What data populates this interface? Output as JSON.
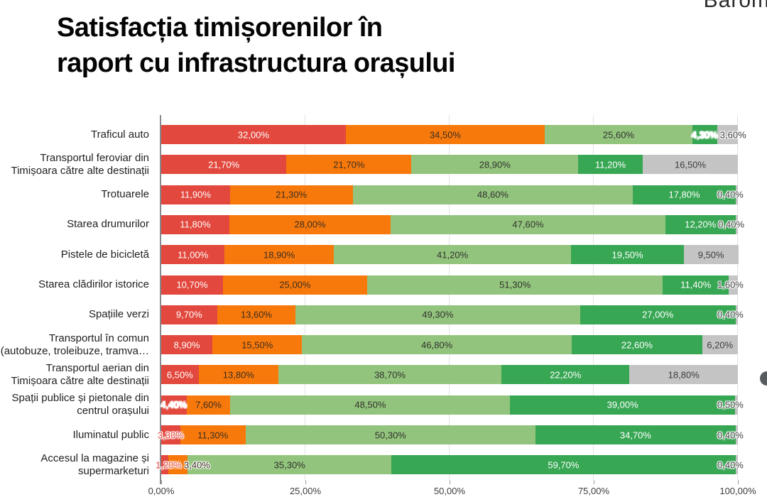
{
  "title": {
    "line1": "Satisfacția timișorenilor în",
    "line2": "raport cu infrastructura orașului"
  },
  "brand": {
    "text": "Barom"
  },
  "chart_data": {
    "type": "bar",
    "variant": "horizontal-stacked",
    "stacking": "percent",
    "title": "Satisfacția timișorenilor în raport cu infrastructura orașului",
    "xlabel": "",
    "ylabel": "",
    "x_range": [
      0,
      100
    ],
    "grid": true,
    "legend": "none",
    "x_axis": {
      "ticks": [
        "0,00%",
        "25,00%",
        "50,00%",
        "75,00%",
        "100,00%"
      ]
    },
    "series": [
      {
        "key": "red",
        "color": "#e2483d",
        "text_color": "#ffffff",
        "overflow_text_color": "#e2483d"
      },
      {
        "key": "orange",
        "color": "#f8790b",
        "text_color": "#3a2e22",
        "overflow_text_color": "#f8790b"
      },
      {
        "key": "light-green",
        "color": "#93c47d",
        "text_color": "#30332c",
        "overflow_text_color": "#93c47d"
      },
      {
        "key": "dark-green",
        "color": "#38a754",
        "text_color": "#ffffff",
        "overflow_text_color": "#ffffff"
      },
      {
        "key": "gray",
        "color": "#c4c4c4",
        "text_color": "#3c3c3c",
        "overflow_text_color": "#404040"
      }
    ],
    "rows": [
      {
        "label": "Traficul auto",
        "label_lines": [
          "Traficul auto"
        ],
        "values": [
          32.0,
          34.5,
          25.6,
          4.3,
          3.6
        ],
        "display": [
          "32,00%",
          "34,50%",
          "25,60%",
          "4,30%",
          "3,60%"
        ]
      },
      {
        "label": "Transportul feroviar din Timișoara către alte destinații",
        "label_lines": [
          "Transportul feroviar din",
          "Timișoara către alte destinații"
        ],
        "values": [
          21.7,
          21.7,
          28.9,
          11.2,
          16.5
        ],
        "display": [
          "21,70%",
          "21,70%",
          "28,90%",
          "11,20%",
          "16,50%"
        ]
      },
      {
        "label": "Trotuarele",
        "label_lines": [
          "Trotuarele"
        ],
        "values": [
          11.9,
          21.3,
          48.6,
          17.8,
          0.4
        ],
        "display": [
          "11,90%",
          "21,30%",
          "48,60%",
          "17,80%",
          "0,40%"
        ]
      },
      {
        "label": "Starea drumurilor",
        "label_lines": [
          "Starea drumurilor"
        ],
        "values": [
          11.8,
          28.0,
          47.6,
          12.2,
          0.4
        ],
        "display": [
          "11,80%",
          "28,00%",
          "47,60%",
          "12,20%",
          "0,40%"
        ]
      },
      {
        "label": "Pistele de bicicletă",
        "label_lines": [
          "Pistele de bicicletă"
        ],
        "values": [
          11.0,
          18.9,
          41.2,
          19.5,
          9.5
        ],
        "display": [
          "11,00%",
          "18,90%",
          "41,20%",
          "19,50%",
          "9,50%"
        ]
      },
      {
        "label": "Starea clădirilor istorice",
        "label_lines": [
          "Starea clădirilor istorice"
        ],
        "values": [
          10.7,
          25.0,
          51.3,
          11.4,
          1.6
        ],
        "display": [
          "10,70%",
          "25,00%",
          "51,30%",
          "11,40%",
          "1,60%"
        ]
      },
      {
        "label": "Spațiile verzi",
        "label_lines": [
          "Spațiile verzi"
        ],
        "values": [
          9.7,
          13.6,
          49.3,
          27.0,
          0.4
        ],
        "display": [
          "9,70%",
          "13,60%",
          "49,30%",
          "27,00%",
          "0,40%"
        ]
      },
      {
        "label": "Transportul în comun (autobuze, troleibuze, tramva…",
        "label_lines": [
          "Transportul în comun",
          "(autobuze, troleibuze, tramva…"
        ],
        "values": [
          8.9,
          15.5,
          46.8,
          22.6,
          6.2
        ],
        "display": [
          "8,90%",
          "15,50%",
          "46,80%",
          "22,60%",
          "6,20%"
        ]
      },
      {
        "label": "Transportul aerian din Timișoara către alte destinații",
        "label_lines": [
          "Transportul aerian din",
          "Timișoara către alte destinații"
        ],
        "values": [
          6.5,
          13.8,
          38.7,
          22.2,
          18.8
        ],
        "display": [
          "6,50%",
          "13,80%",
          "38,70%",
          "22,20%",
          "18,80%"
        ]
      },
      {
        "label": "Spații publice și pietonale din centrul orașului",
        "label_lines": [
          "Spații publice și pietonale din",
          "centrul orașului"
        ],
        "values": [
          4.4,
          7.6,
          48.5,
          39.0,
          0.5
        ],
        "display": [
          "4,40%",
          "7,60%",
          "48,50%",
          "39,00%",
          "0,50%"
        ]
      },
      {
        "label": "Iluminatul public",
        "label_lines": [
          "Iluminatul public"
        ],
        "values": [
          3.3,
          11.3,
          50.3,
          34.7,
          0.4
        ],
        "display": [
          "3,30%",
          "11,30%",
          "50,30%",
          "34,70%",
          "0,40%"
        ]
      },
      {
        "label": "Accesul la magazine și supermarketuri",
        "label_lines": [
          "Accesul la magazine și",
          "supermarketuri"
        ],
        "values": [
          1.2,
          3.4,
          35.3,
          59.7,
          0.4
        ],
        "display": [
          "1,20%",
          "3,40%",
          "35,30%",
          "59,70%",
          "0,40%"
        ]
      }
    ]
  }
}
